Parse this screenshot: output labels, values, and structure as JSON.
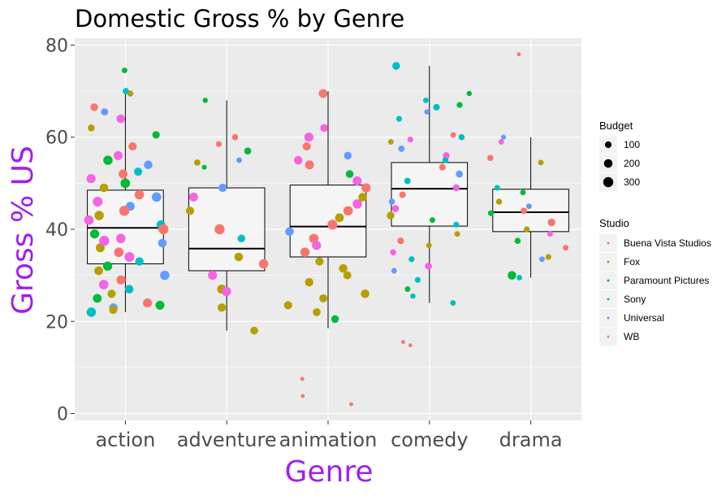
{
  "chart_data": {
    "type": "boxplot",
    "title": "Domestic Gross % by Genre",
    "xlabel": "Genre",
    "ylabel": "Gross % US",
    "ylim": [
      -1.5,
      81.5
    ],
    "yticks": [
      0,
      20,
      40,
      60,
      80
    ],
    "grid": true,
    "categories": [
      "action",
      "adventure",
      "animation",
      "comedy",
      "drama"
    ],
    "boxes": [
      {
        "category": "action",
        "whisker_low": 22,
        "q1": 32.5,
        "median": 40.3,
        "q3": 48.5,
        "whisker_high": 70
      },
      {
        "category": "adventure",
        "whisker_low": 18,
        "q1": 31,
        "median": 35.8,
        "q3": 49,
        "whisker_high": 68
      },
      {
        "category": "animation",
        "whisker_low": 18.5,
        "q1": 34,
        "median": 40.6,
        "q3": 49.6,
        "whisker_high": 70
      },
      {
        "category": "comedy",
        "whisker_low": 24,
        "q1": 40.7,
        "median": 48.8,
        "q3": 54.5,
        "whisker_high": 75.5
      },
      {
        "category": "drama",
        "whisker_low": 29.5,
        "q1": 39.5,
        "median": 43.7,
        "q3": 48.7,
        "whisker_high": 60
      }
    ],
    "outliers": [
      {
        "category": "animation",
        "y": 7.5
      },
      {
        "category": "animation",
        "y": 2
      },
      {
        "category": "animation",
        "y": 3.8
      },
      {
        "category": "comedy",
        "y": 15.5
      },
      {
        "category": "comedy",
        "y": 14.8
      },
      {
        "category": "drama",
        "y": 78
      }
    ],
    "points": [
      {
        "category": "action",
        "studio": "Paramount Pictures",
        "y": 74.5,
        "budget": 60
      },
      {
        "category": "action",
        "studio": "Fox",
        "y": 69.5,
        "budget": 80
      },
      {
        "category": "action",
        "studio": "Buena Vista Studios",
        "y": 66.5,
        "budget": 150
      },
      {
        "category": "action",
        "studio": "Universal",
        "y": 65.5,
        "budget": 120
      },
      {
        "category": "action",
        "studio": "WB",
        "y": 64,
        "budget": 200
      },
      {
        "category": "action",
        "studio": "Sony",
        "y": 70,
        "budget": 90
      },
      {
        "category": "action",
        "studio": "Fox",
        "y": 62,
        "budget": 110
      },
      {
        "category": "action",
        "studio": "Paramount Pictures",
        "y": 60.5,
        "budget": 140
      },
      {
        "category": "action",
        "studio": "Buena Vista Studios",
        "y": 58,
        "budget": 180
      },
      {
        "category": "action",
        "studio": "WB",
        "y": 56,
        "budget": 220
      },
      {
        "category": "action",
        "studio": "Paramount Pictures",
        "y": 55,
        "budget": 250
      },
      {
        "category": "action",
        "studio": "Universal",
        "y": 54,
        "budget": 200
      },
      {
        "category": "action",
        "studio": "Sony",
        "y": 52.5,
        "budget": 180
      },
      {
        "category": "action",
        "studio": "WB",
        "y": 51,
        "budget": 230
      },
      {
        "category": "action",
        "studio": "Paramount Pictures",
        "y": 50,
        "budget": 260
      },
      {
        "category": "action",
        "studio": "Fox",
        "y": 49,
        "budget": 200
      },
      {
        "category": "action",
        "studio": "Buena Vista Studios",
        "y": 47.5,
        "budget": 250
      },
      {
        "category": "action",
        "studio": "WB",
        "y": 46,
        "budget": 280
      },
      {
        "category": "action",
        "studio": "Universal",
        "y": 45,
        "budget": 220
      },
      {
        "category": "action",
        "studio": "Buena Vista Studios",
        "y": 44,
        "budget": 300
      },
      {
        "category": "action",
        "studio": "Fox",
        "y": 43,
        "budget": 250
      },
      {
        "category": "action",
        "studio": "WB",
        "y": 42,
        "budget": 260
      },
      {
        "category": "action",
        "studio": "Sony",
        "y": 41,
        "budget": 210
      },
      {
        "category": "action",
        "studio": "Buena Vista Studios",
        "y": 40,
        "budget": 300
      },
      {
        "category": "action",
        "studio": "Paramount Pictures",
        "y": 39,
        "budget": 230
      },
      {
        "category": "action",
        "studio": "WB",
        "y": 38,
        "budget": 250
      },
      {
        "category": "action",
        "studio": "Universal",
        "y": 37,
        "budget": 200
      },
      {
        "category": "action",
        "studio": "Fox",
        "y": 36,
        "budget": 220
      },
      {
        "category": "action",
        "studio": "Buena Vista Studios",
        "y": 35,
        "budget": 260
      },
      {
        "category": "action",
        "studio": "WB",
        "y": 34,
        "budget": 280
      },
      {
        "category": "action",
        "studio": "Sony",
        "y": 33,
        "budget": 190
      },
      {
        "category": "action",
        "studio": "Paramount Pictures",
        "y": 32,
        "budget": 240
      },
      {
        "category": "action",
        "studio": "Fox",
        "y": 31,
        "budget": 210
      },
      {
        "category": "action",
        "studio": "Universal",
        "y": 30,
        "budget": 250
      },
      {
        "category": "action",
        "studio": "Buena Vista Studios",
        "y": 29,
        "budget": 230
      },
      {
        "category": "action",
        "studio": "WB",
        "y": 28,
        "budget": 260
      },
      {
        "category": "action",
        "studio": "Sony",
        "y": 27,
        "budget": 200
      },
      {
        "category": "action",
        "studio": "Fox",
        "y": 26,
        "budget": 180
      },
      {
        "category": "action",
        "studio": "Paramount Pictures",
        "y": 25,
        "budget": 210
      },
      {
        "category": "action",
        "studio": "Buena Vista Studios",
        "y": 24,
        "budget": 230
      },
      {
        "category": "action",
        "studio": "Universal",
        "y": 23,
        "budget": 200
      },
      {
        "category": "action",
        "studio": "Fox",
        "y": 22.5,
        "budget": 180
      },
      {
        "category": "action",
        "studio": "Sony",
        "y": 22,
        "budget": 250
      },
      {
        "category": "action",
        "studio": "Paramount Pictures",
        "y": 23.5,
        "budget": 220
      },
      {
        "category": "action",
        "studio": "WB",
        "y": 37.5,
        "budget": 300
      },
      {
        "category": "action",
        "studio": "Universal",
        "y": 47,
        "budget": 260
      },
      {
        "category": "action",
        "studio": "Buena Vista Studios",
        "y": 52,
        "budget": 220
      },
      {
        "category": "adventure",
        "studio": "Paramount Pictures",
        "y": 68,
        "budget": 50
      },
      {
        "category": "adventure",
        "studio": "Buena Vista Studios",
        "y": 60,
        "budget": 80
      },
      {
        "category": "adventure",
        "studio": "Buena Vista Studios",
        "y": 58.5,
        "budget": 70
      },
      {
        "category": "adventure",
        "studio": "Paramount Pictures",
        "y": 57,
        "budget": 120
      },
      {
        "category": "adventure",
        "studio": "Universal",
        "y": 55,
        "budget": 60
      },
      {
        "category": "adventure",
        "studio": "Fox",
        "y": 54.5,
        "budget": 90
      },
      {
        "category": "adventure",
        "studio": "Paramount Pictures",
        "y": 53.5,
        "budget": 40
      },
      {
        "category": "adventure",
        "studio": "Universal",
        "y": 49,
        "budget": 180
      },
      {
        "category": "adventure",
        "studio": "WB",
        "y": 47,
        "budget": 220
      },
      {
        "category": "adventure",
        "studio": "Fox",
        "y": 44,
        "budget": 180
      },
      {
        "category": "adventure",
        "studio": "Buena Vista Studios",
        "y": 40,
        "budget": 300
      },
      {
        "category": "adventure",
        "studio": "Sony",
        "y": 38,
        "budget": 150
      },
      {
        "category": "adventure",
        "studio": "Fox",
        "y": 34,
        "budget": 200
      },
      {
        "category": "adventure",
        "studio": "Buena Vista Studios",
        "y": 32.5,
        "budget": 250
      },
      {
        "category": "adventure",
        "studio": "WB",
        "y": 30,
        "budget": 230
      },
      {
        "category": "adventure",
        "studio": "Fox",
        "y": 27,
        "budget": 230
      },
      {
        "category": "adventure",
        "studio": "WB",
        "y": 26.5,
        "budget": 250
      },
      {
        "category": "adventure",
        "studio": "Fox",
        "y": 23,
        "budget": 190
      },
      {
        "category": "adventure",
        "studio": "Fox",
        "y": 18,
        "budget": 160
      },
      {
        "category": "animation",
        "studio": "WB",
        "y": 62,
        "budget": 150
      },
      {
        "category": "animation",
        "studio": "Buena Vista Studios",
        "y": 69.5,
        "budget": 210
      },
      {
        "category": "animation",
        "studio": "WB",
        "y": 60,
        "budget": 230
      },
      {
        "category": "animation",
        "studio": "Buena Vista Studios",
        "y": 58,
        "budget": 180
      },
      {
        "category": "animation",
        "studio": "Universal",
        "y": 56,
        "budget": 150
      },
      {
        "category": "animation",
        "studio": "WB",
        "y": 55,
        "budget": 200
      },
      {
        "category": "animation",
        "studio": "Buena Vista Studios",
        "y": 54,
        "budget": 220
      },
      {
        "category": "animation",
        "studio": "Paramount Pictures",
        "y": 52,
        "budget": 150
      },
      {
        "category": "animation",
        "studio": "WB",
        "y": 50.5,
        "budget": 230
      },
      {
        "category": "animation",
        "studio": "Buena Vista Studios",
        "y": 49,
        "budget": 240
      },
      {
        "category": "animation",
        "studio": "Fox",
        "y": 47,
        "budget": 200
      },
      {
        "category": "animation",
        "studio": "WB",
        "y": 45.5,
        "budget": 250
      },
      {
        "category": "animation",
        "studio": "Buena Vista Studios",
        "y": 44,
        "budget": 260
      },
      {
        "category": "animation",
        "studio": "Fox",
        "y": 42.5,
        "budget": 210
      },
      {
        "category": "animation",
        "studio": "Buena Vista Studios",
        "y": 41,
        "budget": 280
      },
      {
        "category": "animation",
        "studio": "Universal",
        "y": 39.5,
        "budget": 200
      },
      {
        "category": "animation",
        "studio": "Buena Vista Studios",
        "y": 38,
        "budget": 260
      },
      {
        "category": "animation",
        "studio": "WB",
        "y": 36.5,
        "budget": 230
      },
      {
        "category": "animation",
        "studio": "Buena Vista Studios",
        "y": 35,
        "budget": 250
      },
      {
        "category": "animation",
        "studio": "Fox",
        "y": 33,
        "budget": 180
      },
      {
        "category": "animation",
        "studio": "Fox",
        "y": 31.5,
        "budget": 200
      },
      {
        "category": "animation",
        "studio": "Fox",
        "y": 30,
        "budget": 170
      },
      {
        "category": "animation",
        "studio": "Fox",
        "y": 28.5,
        "budget": 190
      },
      {
        "category": "animation",
        "studio": "Fox",
        "y": 26,
        "budget": 200
      },
      {
        "category": "animation",
        "studio": "Fox",
        "y": 23.5,
        "budget": 180
      },
      {
        "category": "animation",
        "studio": "Fox",
        "y": 22,
        "budget": 160
      },
      {
        "category": "animation",
        "studio": "Paramount Pictures",
        "y": 20.5,
        "budget": 150
      },
      {
        "category": "animation",
        "studio": "Fox",
        "y": 25,
        "budget": 170
      },
      {
        "category": "comedy",
        "studio": "Sony",
        "y": 75.5,
        "budget": 150
      },
      {
        "category": "comedy",
        "studio": "Paramount Pictures",
        "y": 69.5,
        "budget": 50
      },
      {
        "category": "comedy",
        "studio": "Sony",
        "y": 68,
        "budget": 60
      },
      {
        "category": "comedy",
        "studio": "Paramount Pictures",
        "y": 67,
        "budget": 70
      },
      {
        "category": "comedy",
        "studio": "Sony",
        "y": 66.5,
        "budget": 100
      },
      {
        "category": "comedy",
        "studio": "Universal",
        "y": 65.5,
        "budget": 50
      },
      {
        "category": "comedy",
        "studio": "Sony",
        "y": 64,
        "budget": 70
      },
      {
        "category": "comedy",
        "studio": "Buena Vista Studios",
        "y": 60.5,
        "budget": 60
      },
      {
        "category": "comedy",
        "studio": "Sony",
        "y": 60,
        "budget": 80
      },
      {
        "category": "comedy",
        "studio": "WB",
        "y": 59.5,
        "budget": 70
      },
      {
        "category": "comedy",
        "studio": "Fox",
        "y": 59,
        "budget": 60
      },
      {
        "category": "comedy",
        "studio": "Universal",
        "y": 57.5,
        "budget": 90
      },
      {
        "category": "comedy",
        "studio": "WB",
        "y": 56,
        "budget": 110
      },
      {
        "category": "comedy",
        "studio": "Sony",
        "y": 55,
        "budget": 80
      },
      {
        "category": "comedy",
        "studio": "Buena Vista Studios",
        "y": 53.5,
        "budget": 100
      },
      {
        "category": "comedy",
        "studio": "Universal",
        "y": 52,
        "budget": 120
      },
      {
        "category": "comedy",
        "studio": "Sony",
        "y": 50.5,
        "budget": 90
      },
      {
        "category": "comedy",
        "studio": "WB",
        "y": 49,
        "budget": 110
      },
      {
        "category": "comedy",
        "studio": "Buena Vista Studios",
        "y": 47.5,
        "budget": 100
      },
      {
        "category": "comedy",
        "studio": "Universal",
        "y": 46,
        "budget": 80
      },
      {
        "category": "comedy",
        "studio": "WB",
        "y": 44.5,
        "budget": 120
      },
      {
        "category": "comedy",
        "studio": "Fox",
        "y": 43,
        "budget": 150
      },
      {
        "category": "comedy",
        "studio": "Paramount Pictures",
        "y": 42,
        "budget": 60
      },
      {
        "category": "comedy",
        "studio": "Sony",
        "y": 41,
        "budget": 70
      },
      {
        "category": "comedy",
        "studio": "Fox",
        "y": 39,
        "budget": 60
      },
      {
        "category": "comedy",
        "studio": "Buena Vista Studios",
        "y": 37.5,
        "budget": 100
      },
      {
        "category": "comedy",
        "studio": "Fox",
        "y": 36.5,
        "budget": 60
      },
      {
        "category": "comedy",
        "studio": "WB",
        "y": 35,
        "budget": 80
      },
      {
        "category": "comedy",
        "studio": "Sony",
        "y": 33.5,
        "budget": 70
      },
      {
        "category": "comedy",
        "studio": "WB",
        "y": 32,
        "budget": 120
      },
      {
        "category": "comedy",
        "studio": "Universal",
        "y": 31,
        "budget": 60
      },
      {
        "category": "comedy",
        "studio": "Sony",
        "y": 29,
        "budget": 70
      },
      {
        "category": "comedy",
        "studio": "Paramount Pictures",
        "y": 27,
        "budget": 60
      },
      {
        "category": "comedy",
        "studio": "Sony",
        "y": 25.5,
        "budget": 50
      },
      {
        "category": "comedy",
        "studio": "Sony",
        "y": 24,
        "budget": 60
      },
      {
        "category": "drama",
        "studio": "WB",
        "y": 59,
        "budget": 60
      },
      {
        "category": "drama",
        "studio": "Universal",
        "y": 60,
        "budget": 40
      },
      {
        "category": "drama",
        "studio": "Buena Vista Studios",
        "y": 55.5,
        "budget": 80
      },
      {
        "category": "drama",
        "studio": "Fox",
        "y": 54.5,
        "budget": 60
      },
      {
        "category": "drama",
        "studio": "Sony",
        "y": 49,
        "budget": 70
      },
      {
        "category": "drama",
        "studio": "Paramount Pictures",
        "y": 48,
        "budget": 60
      },
      {
        "category": "drama",
        "studio": "Fox",
        "y": 46,
        "budget": 80
      },
      {
        "category": "drama",
        "studio": "Universal",
        "y": 45,
        "budget": 60
      },
      {
        "category": "drama",
        "studio": "Buena Vista Studios",
        "y": 44,
        "budget": 90
      },
      {
        "category": "drama",
        "studio": "Paramount Pictures",
        "y": 43.5,
        "budget": 70
      },
      {
        "category": "drama",
        "studio": "Buena Vista Studios",
        "y": 41.5,
        "budget": 150
      },
      {
        "category": "drama",
        "studio": "Fox",
        "y": 40,
        "budget": 70
      },
      {
        "category": "drama",
        "studio": "WB",
        "y": 39,
        "budget": 60
      },
      {
        "category": "drama",
        "studio": "Paramount Pictures",
        "y": 37.5,
        "budget": 80
      },
      {
        "category": "drama",
        "studio": "Buena Vista Studios",
        "y": 36,
        "budget": 60
      },
      {
        "category": "drama",
        "studio": "Fox",
        "y": 34,
        "budget": 70
      },
      {
        "category": "drama",
        "studio": "Universal",
        "y": 33.5,
        "budget": 60
      },
      {
        "category": "drama",
        "studio": "Paramount Pictures",
        "y": 30,
        "budget": 200
      },
      {
        "category": "drama",
        "studio": "Sony",
        "y": 29.5,
        "budget": 60
      }
    ],
    "legends": {
      "size": {
        "title": "Budget",
        "values": [
          100,
          200,
          300
        ]
      },
      "color": {
        "title": "Studio",
        "entries": [
          "Buena Vista Studios",
          "Fox",
          "Paramount Pictures",
          "Sony",
          "Universal",
          "WB"
        ]
      }
    },
    "legend_placement": "right"
  },
  "colors": {
    "Buena Vista Studios": "#F8766D",
    "Fox": "#B79F00",
    "Paramount Pictures": "#00BA38",
    "Sony": "#00BFC4",
    "Universal": "#619CFF",
    "WB": "#F564E3",
    "panel_background": "#EBEBEB",
    "grid_line": "#FFFFFF",
    "box_fill": "#F7F7F7",
    "axis_title": "#A020F0"
  }
}
